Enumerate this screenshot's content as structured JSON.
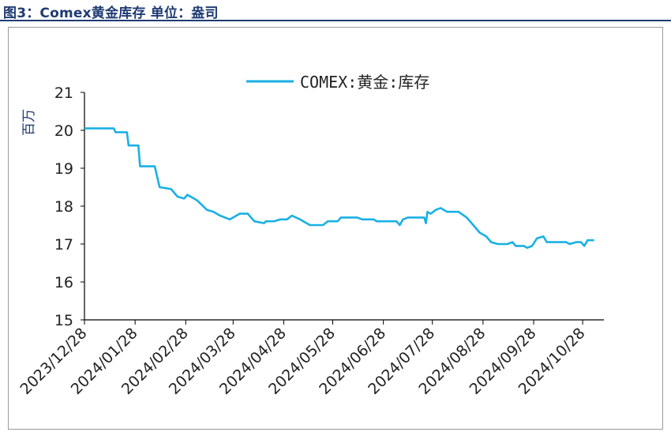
{
  "figure": {
    "title": "图3：Comex黄金库存  单位：盎司"
  },
  "chart_data": {
    "type": "line",
    "title": "",
    "ylabel": "百万",
    "xlabel": "",
    "ylim": [
      15,
      21
    ],
    "yticks": [
      15,
      16,
      17,
      18,
      19,
      20,
      21
    ],
    "xlim": [
      "2023-12-28",
      "2024-11-10"
    ],
    "xticks": [
      "2023/12/28",
      "2024/01/28",
      "2024/02/28",
      "2024/03/28",
      "2024/04/28",
      "2024/05/28",
      "2024/06/28",
      "2024/07/28",
      "2024/08/28",
      "2024/09/28",
      "2024/10/28"
    ],
    "legend": {
      "position": "top-center"
    },
    "grid": false,
    "series": [
      {
        "name": "COMEX:黄金:库存",
        "color": "#1ab0e4",
        "points": [
          [
            "2023-12-28",
            20.05
          ],
          [
            "2024-01-15",
            20.05
          ],
          [
            "2024-01-16",
            19.95
          ],
          [
            "2024-01-23",
            19.95
          ],
          [
            "2024-01-24",
            19.6
          ],
          [
            "2024-01-30",
            19.6
          ],
          [
            "2024-01-31",
            19.05
          ],
          [
            "2024-02-09",
            19.05
          ],
          [
            "2024-02-12",
            18.5
          ],
          [
            "2024-02-19",
            18.45
          ],
          [
            "2024-02-23",
            18.25
          ],
          [
            "2024-02-27",
            18.2
          ],
          [
            "2024-02-29",
            18.3
          ],
          [
            "2024-03-06",
            18.15
          ],
          [
            "2024-03-12",
            17.9
          ],
          [
            "2024-03-16",
            17.85
          ],
          [
            "2024-03-20",
            17.75
          ],
          [
            "2024-03-26",
            17.65
          ],
          [
            "2024-04-01",
            17.8
          ],
          [
            "2024-04-06",
            17.8
          ],
          [
            "2024-04-10",
            17.6
          ],
          [
            "2024-04-16",
            17.55
          ],
          [
            "2024-04-17",
            17.6
          ],
          [
            "2024-04-22",
            17.6
          ],
          [
            "2024-04-26",
            17.65
          ],
          [
            "2024-04-30",
            17.65
          ],
          [
            "2024-05-03",
            17.75
          ],
          [
            "2024-05-08",
            17.65
          ],
          [
            "2024-05-14",
            17.5
          ],
          [
            "2024-05-22",
            17.5
          ],
          [
            "2024-05-25",
            17.6
          ],
          [
            "2024-05-31",
            17.6
          ],
          [
            "2024-06-02",
            17.7
          ],
          [
            "2024-06-12",
            17.7
          ],
          [
            "2024-06-15",
            17.65
          ],
          [
            "2024-06-22",
            17.65
          ],
          [
            "2024-06-24",
            17.6
          ],
          [
            "2024-07-06",
            17.6
          ],
          [
            "2024-07-08",
            17.5
          ],
          [
            "2024-07-10",
            17.65
          ],
          [
            "2024-07-13",
            17.7
          ],
          [
            "2024-07-23",
            17.7
          ],
          [
            "2024-07-24",
            17.55
          ],
          [
            "2024-07-25",
            17.85
          ],
          [
            "2024-07-27",
            17.8
          ],
          [
            "2024-07-30",
            17.9
          ],
          [
            "2024-08-02",
            17.95
          ],
          [
            "2024-08-06",
            17.85
          ],
          [
            "2024-08-13",
            17.85
          ],
          [
            "2024-08-18",
            17.7
          ],
          [
            "2024-08-22",
            17.5
          ],
          [
            "2024-08-26",
            17.3
          ],
          [
            "2024-08-30",
            17.2
          ],
          [
            "2024-09-02",
            17.05
          ],
          [
            "2024-09-06",
            17.0
          ],
          [
            "2024-09-12",
            17.0
          ],
          [
            "2024-09-15",
            17.05
          ],
          [
            "2024-09-17",
            16.95
          ],
          [
            "2024-09-22",
            16.95
          ],
          [
            "2024-09-24",
            16.9
          ],
          [
            "2024-09-27",
            16.95
          ],
          [
            "2024-09-30",
            17.15
          ],
          [
            "2024-10-04",
            17.2
          ],
          [
            "2024-10-06",
            17.05
          ],
          [
            "2024-10-18",
            17.05
          ],
          [
            "2024-10-20",
            17.0
          ],
          [
            "2024-10-24",
            17.05
          ],
          [
            "2024-10-27",
            17.05
          ],
          [
            "2024-10-29",
            16.95
          ],
          [
            "2024-10-31",
            17.1
          ],
          [
            "2024-11-04",
            17.1
          ]
        ]
      }
    ]
  }
}
